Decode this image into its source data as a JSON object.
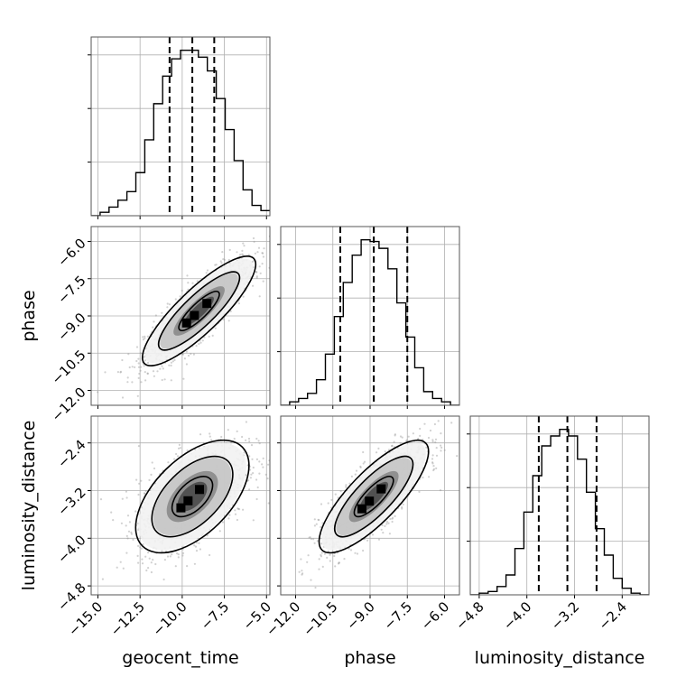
{
  "chart_data": {
    "type": "corner",
    "parameters": [
      "geocent_time",
      "phase",
      "luminosity_distance"
    ],
    "axis_ranges": {
      "geocent_time": [
        -15.4,
        -4.8
      ],
      "phase": [
        -12.6,
        -5.4
      ],
      "luminosity_distance": [
        -4.95,
        -1.95
      ]
    },
    "ticks": {
      "geocent_time": [
        -15.0,
        -12.5,
        -10.0,
        -7.5,
        -5.0
      ],
      "phase": [
        -12.0,
        -10.5,
        -9.0,
        -7.5,
        -6.0
      ],
      "luminosity_distance": [
        -4.8,
        -4.0,
        -3.2,
        -2.4
      ]
    },
    "tick_labels": {
      "geocent_time": [
        "−15.0",
        "−12.5",
        "−10.0",
        "−7.5",
        "−5.0"
      ],
      "phase": [
        "−12.0",
        "−10.5",
        "−9.0",
        "−7.5",
        "−6.0"
      ],
      "luminosity_distance": [
        "−4.8",
        "−4.0",
        "−3.2",
        "−2.4"
      ]
    },
    "marginals": {
      "geocent_time": {
        "quantiles": [
          -10.75,
          -9.4,
          -8.1
        ],
        "bin_edges": [
          -15.4,
          -14.87,
          -14.34,
          -13.81,
          -13.28,
          -12.75,
          -12.22,
          -11.69,
          -11.16,
          -10.63,
          -10.1,
          -9.57,
          -9.04,
          -8.51,
          -7.98,
          -7.45,
          -6.92,
          -6.39,
          -5.86,
          -5.33,
          -4.8
        ],
        "counts": [
          0,
          2,
          5,
          9,
          14,
          25,
          44,
          65,
          81,
          91,
          96,
          96,
          92,
          84,
          68,
          50,
          32,
          15,
          6,
          3
        ]
      },
      "phase": {
        "quantiles": [
          -10.2,
          -8.85,
          -7.5
        ],
        "bin_edges": [
          -12.6,
          -12.24,
          -11.88,
          -11.52,
          -11.16,
          -10.8,
          -10.44,
          -10.08,
          -9.72,
          -9.36,
          -9.0,
          -8.64,
          -8.28,
          -7.92,
          -7.56,
          -7.2,
          -6.84,
          -6.48,
          -6.12,
          -5.76,
          -5.4
        ],
        "counts": [
          0,
          2,
          4,
          7,
          15,
          30,
          52,
          72,
          88,
          97,
          96,
          92,
          80,
          60,
          40,
          22,
          8,
          4,
          2,
          0
        ]
      },
      "luminosity_distance": {
        "quantiles": [
          -3.8,
          -3.32,
          -2.83
        ],
        "bin_edges": [
          -4.95,
          -4.8,
          -4.65,
          -4.5,
          -4.35,
          -4.2,
          -4.05,
          -3.9,
          -3.75,
          -3.6,
          -3.45,
          -3.3,
          -3.15,
          -3.0,
          -2.85,
          -2.7,
          -2.55,
          -2.4,
          -2.25,
          -2.1,
          -1.95
        ],
        "counts": [
          0,
          1,
          2,
          5,
          12,
          28,
          50,
          72,
          90,
          96,
          100,
          96,
          82,
          62,
          40,
          24,
          10,
          4,
          1,
          0
        ]
      }
    },
    "joint": [
      {
        "x": "geocent_time",
        "y": "phase",
        "mean": [
          -9.0,
          -8.8
        ],
        "sd": [
          1.6,
          1.05
        ],
        "corr": 0.85
      },
      {
        "x": "geocent_time",
        "y": "luminosity_distance",
        "mean": [
          -9.4,
          -3.3
        ],
        "sd": [
          1.6,
          0.45
        ],
        "corr": 0.55
      },
      {
        "x": "phase",
        "y": "luminosity_distance",
        "mean": [
          -8.85,
          -3.3
        ],
        "sd": [
          1.05,
          0.45
        ],
        "corr": 0.8
      }
    ],
    "grid": true,
    "colors": {
      "hist": "#000000",
      "points": "#9a9a9a",
      "density_dark": "#000000",
      "density_light": "#d9d9d9"
    }
  }
}
